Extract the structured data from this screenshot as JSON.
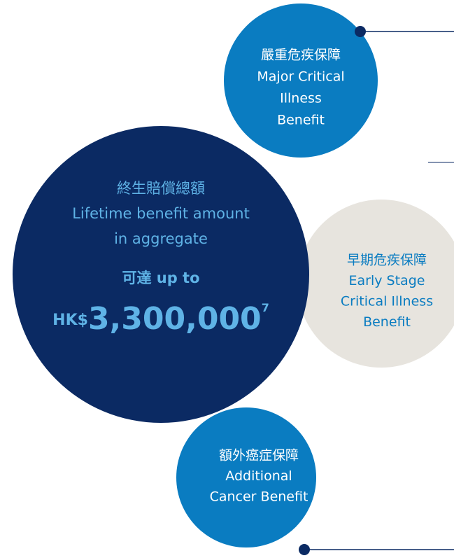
{
  "nodes": [
    {
      "lines": [
        "嚴重危疾保障",
        "Major Critical",
        "Illness",
        "Benefit"
      ]
    },
    {
      "lines": [
        "早期危疾保障",
        "Early Stage",
        "Critical Illness",
        "Benefit"
      ]
    },
    {
      "lines": [
        "額外癌症保障",
        "Additional",
        "Cancer Benefit"
      ]
    }
  ],
  "center": {
    "lines": [
      "終生賠償總額",
      "Lifetime benefit amount",
      "in aggregate"
    ],
    "prefix_zh": "可達",
    "prefix_en": "up to",
    "currency": "HK$",
    "amount": "3,300,000",
    "footnote": "7"
  }
}
